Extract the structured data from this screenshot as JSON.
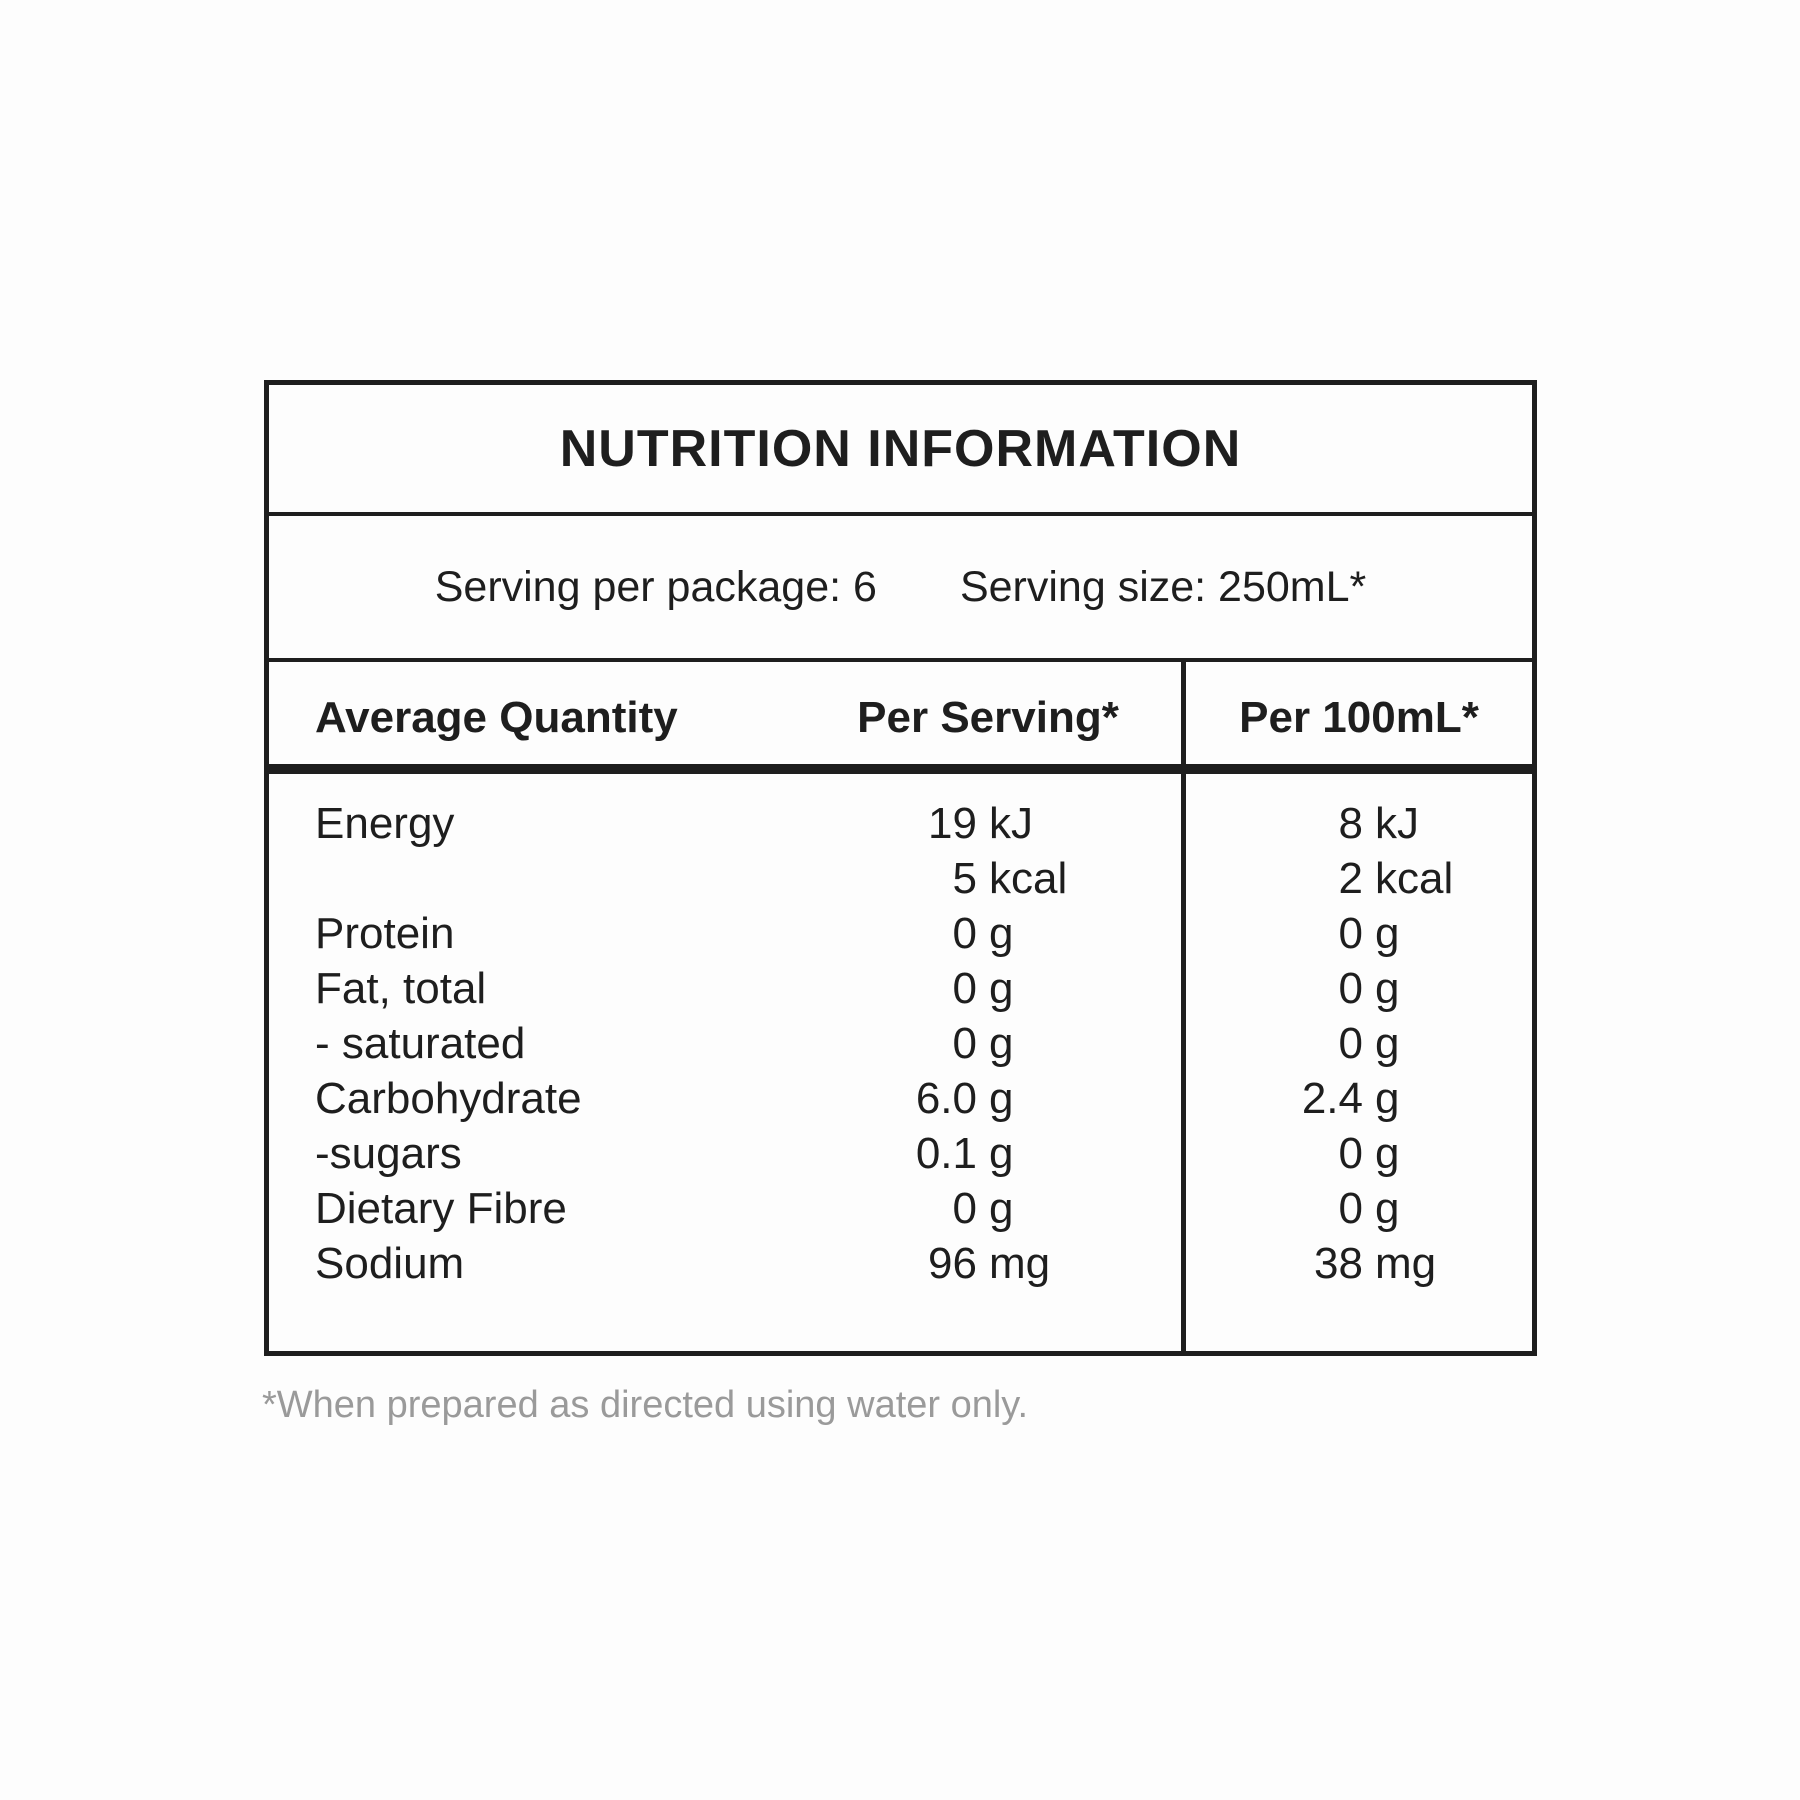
{
  "colors": {
    "text": "#1e1e1e",
    "border": "#1e1e1e",
    "footnote_gray": "#9a9a9a",
    "background": "#fdfdfd"
  },
  "table": {
    "title": "NUTRITION INFORMATION",
    "serving_line": {
      "per_package": "Serving per package: 6",
      "size": "Serving size: 250mL*"
    },
    "columns": {
      "label": "Average Quantity",
      "per_serving": "Per Serving*",
      "per_100ml": "Per 100mL*"
    },
    "rows": [
      {
        "label": "Energy",
        "serving_num": "19",
        "serving_unit": "kJ",
        "per100_num": "8",
        "per100_unit": "kJ"
      },
      {
        "label": "",
        "serving_num": "5",
        "serving_unit": "kcal",
        "per100_num": "2",
        "per100_unit": "kcal"
      },
      {
        "label": "Protein",
        "serving_num": "0",
        "serving_unit": "g",
        "per100_num": "0",
        "per100_unit": "g"
      },
      {
        "label": "Fat, total",
        "serving_num": "0",
        "serving_unit": "g",
        "per100_num": "0",
        "per100_unit": "g"
      },
      {
        "label": "- saturated",
        "serving_num": "0",
        "serving_unit": "g",
        "per100_num": "0",
        "per100_unit": "g"
      },
      {
        "label": "Carbohydrate",
        "serving_num": "6.0",
        "serving_unit": "g",
        "per100_num": "2.4",
        "per100_unit": "g"
      },
      {
        "label": "-sugars",
        "serving_num": "0.1",
        "serving_unit": "g",
        "per100_num": "0",
        "per100_unit": "g"
      },
      {
        "label": "Dietary Fibre",
        "serving_num": "0",
        "serving_unit": "g",
        "per100_num": "0",
        "per100_unit": "g"
      },
      {
        "label": "Sodium",
        "serving_num": "96",
        "serving_unit": "mg",
        "per100_num": "38",
        "per100_unit": "mg"
      }
    ],
    "footnote": "*When prepared as directed using water only."
  }
}
